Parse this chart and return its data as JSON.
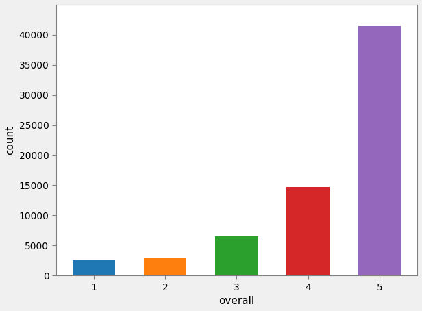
{
  "categories": [
    1,
    2,
    3,
    4,
    5
  ],
  "values": [
    2500,
    3000,
    6500,
    14700,
    41500
  ],
  "bar_colors": [
    "#1f77b4",
    "#ff7f0e",
    "#2ca02c",
    "#d62728",
    "#9467bd"
  ],
  "xlabel": "overall",
  "ylabel": "count",
  "ylim": [
    0,
    45000
  ],
  "yticks": [
    0,
    5000,
    10000,
    15000,
    20000,
    25000,
    30000,
    35000,
    40000
  ],
  "figsize": [
    6.16,
    4.54
  ],
  "dpi": 100,
  "figure_bg": "#f0f0f0",
  "axes_bg": "#ffffff",
  "spine_color": "#808080",
  "bar_width": 0.6
}
